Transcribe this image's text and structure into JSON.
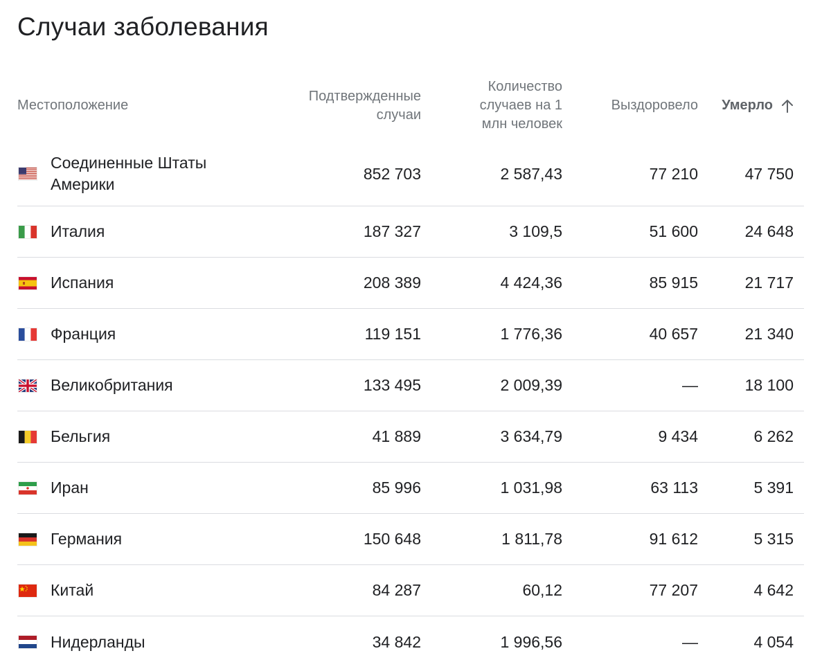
{
  "title": "Случаи заболевания",
  "header": {
    "location": "Местоположение",
    "confirmed_line1": "Подтвержденные",
    "confirmed_line2": "случаи",
    "per_million_line1": "Количество",
    "per_million_line2": "случаев на 1",
    "per_million_line3": "млн человек",
    "recovered": "Выздоровело",
    "deaths": "Умерло",
    "sort_icon": "arrow-up-icon"
  },
  "rows": [
    {
      "flag": "us-flag-icon",
      "name_line1": "Соединенные Штаты",
      "name_line2": "Америки",
      "confirmed": "852 703",
      "per_million": "2 587,43",
      "recovered": "77 210",
      "deaths": "47 750"
    },
    {
      "flag": "it-flag-icon",
      "name_line1": "Италия",
      "name_line2": "",
      "confirmed": "187 327",
      "per_million": "3 109,5",
      "recovered": "51 600",
      "deaths": "24 648"
    },
    {
      "flag": "es-flag-icon",
      "name_line1": "Испания",
      "name_line2": "",
      "confirmed": "208 389",
      "per_million": "4 424,36",
      "recovered": "85 915",
      "deaths": "21 717"
    },
    {
      "flag": "fr-flag-icon",
      "name_line1": "Франция",
      "name_line2": "",
      "confirmed": "119 151",
      "per_million": "1 776,36",
      "recovered": "40 657",
      "deaths": "21 340"
    },
    {
      "flag": "gb-flag-icon",
      "name_line1": "Великобритания",
      "name_line2": "",
      "confirmed": "133 495",
      "per_million": "2 009,39",
      "recovered": "—",
      "deaths": "18 100"
    },
    {
      "flag": "be-flag-icon",
      "name_line1": "Бельгия",
      "name_line2": "",
      "confirmed": "41 889",
      "per_million": "3 634,79",
      "recovered": "9 434",
      "deaths": "6 262"
    },
    {
      "flag": "ir-flag-icon",
      "name_line1": "Иран",
      "name_line2": "",
      "confirmed": "85 996",
      "per_million": "1 031,98",
      "recovered": "63 113",
      "deaths": "5 391"
    },
    {
      "flag": "de-flag-icon",
      "name_line1": "Германия",
      "name_line2": "",
      "confirmed": "150 648",
      "per_million": "1 811,78",
      "recovered": "91 612",
      "deaths": "5 315"
    },
    {
      "flag": "cn-flag-icon",
      "name_line1": "Китай",
      "name_line2": "",
      "confirmed": "84 287",
      "per_million": "60,12",
      "recovered": "77 207",
      "deaths": "4 642"
    },
    {
      "flag": "nl-flag-icon",
      "name_line1": "Нидерланды",
      "name_line2": "",
      "confirmed": "34 842",
      "per_million": "1 996,56",
      "recovered": "—",
      "deaths": "4 054"
    }
  ]
}
